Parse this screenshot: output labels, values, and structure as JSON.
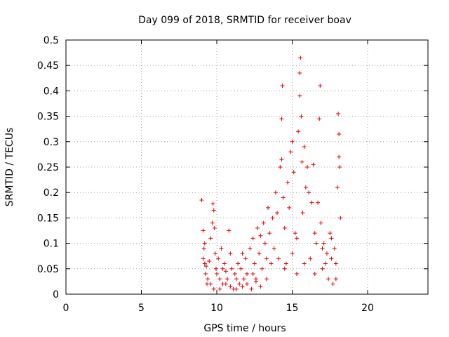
{
  "chart_data": {
    "type": "scatter",
    "title": "Day 099 of 2018, SRMTID for receiver boav",
    "xlabel": "GPS time / hours",
    "ylabel": "SRMTID / TECUs",
    "xlim": [
      0,
      24
    ],
    "ylim": [
      0,
      0.5
    ],
    "x_ticks": [
      0,
      5,
      10,
      15,
      20
    ],
    "x_tick_labels": [
      "0",
      "5",
      "10",
      "15",
      "20"
    ],
    "y_ticks": [
      0,
      0.05,
      0.1,
      0.15,
      0.2,
      0.25,
      0.3,
      0.35,
      0.4,
      0.45,
      0.5
    ],
    "y_tick_labels": [
      "0",
      "0.05",
      "0.1",
      "0.15",
      "0.2",
      "0.25",
      "0.3",
      "0.35",
      "0.4",
      "0.45",
      "0.5"
    ],
    "grid": true,
    "marker": "+",
    "color": "#e00000",
    "series": [
      {
        "name": "SRMTID",
        "points": [
          [
            9.0,
            0.185
          ],
          [
            9.1,
            0.125
          ],
          [
            9.15,
            0.09
          ],
          [
            9.2,
            0.06
          ],
          [
            9.25,
            0.04
          ],
          [
            9.3,
            0.055
          ],
          [
            9.35,
            0.02
          ],
          [
            9.1,
            0.07
          ],
          [
            9.2,
            0.1
          ],
          [
            9.4,
            0.03
          ],
          [
            9.5,
            0.065
          ],
          [
            9.6,
            0.11
          ],
          [
            9.7,
            0.14
          ],
          [
            9.75,
            0.178
          ],
          [
            9.8,
            0.165
          ],
          [
            9.85,
            0.13
          ],
          [
            9.9,
            0.08
          ],
          [
            9.95,
            0.05
          ],
          [
            9.6,
            0.02
          ],
          [
            9.8,
            0.01
          ],
          [
            10.0,
            0.04
          ],
          [
            10.1,
            0.07
          ],
          [
            10.2,
            0.03
          ],
          [
            10.3,
            0.09
          ],
          [
            10.4,
            0.05
          ],
          [
            10.5,
            0.06
          ],
          [
            10.6,
            0.02
          ],
          [
            10.7,
            0.03
          ],
          [
            10.8,
            0.125
          ],
          [
            10.9,
            0.08
          ],
          [
            11.0,
            0.05
          ],
          [
            11.1,
            0.01
          ],
          [
            11.2,
            0.04
          ],
          [
            11.3,
            0.03
          ],
          [
            11.4,
            0.06
          ],
          [
            11.5,
            0.02
          ],
          [
            11.6,
            0.05
          ],
          [
            11.7,
            0.08
          ],
          [
            11.8,
            0.03
          ],
          [
            11.9,
            0.07
          ],
          [
            10.2,
            0.01
          ],
          [
            10.4,
            0.02
          ],
          [
            10.6,
            0.045
          ],
          [
            10.9,
            0.015
          ],
          [
            11.3,
            0.01
          ],
          [
            11.7,
            0.015
          ],
          [
            12.0,
            0.02
          ],
          [
            12.3,
            0.01
          ],
          [
            12.6,
            0.025
          ],
          [
            12.9,
            0.015
          ],
          [
            12.0,
            0.04
          ],
          [
            12.2,
            0.09
          ],
          [
            12.4,
            0.11
          ],
          [
            12.5,
            0.06
          ],
          [
            12.6,
            0.03
          ],
          [
            12.7,
            0.13
          ],
          [
            12.8,
            0.08
          ],
          [
            12.9,
            0.115
          ],
          [
            13.0,
            0.05
          ],
          [
            13.1,
            0.14
          ],
          [
            13.2,
            0.1
          ],
          [
            13.3,
            0.07
          ],
          [
            13.4,
            0.17
          ],
          [
            13.5,
            0.12
          ],
          [
            13.6,
            0.06
          ],
          [
            13.7,
            0.15
          ],
          [
            13.8,
            0.09
          ],
          [
            13.9,
            0.2
          ],
          [
            14.0,
            0.16
          ],
          [
            14.1,
            0.07
          ],
          [
            14.2,
            0.25
          ],
          [
            14.3,
            0.265
          ],
          [
            14.3,
            0.345
          ],
          [
            14.35,
            0.41
          ],
          [
            14.4,
            0.19
          ],
          [
            14.5,
            0.13
          ],
          [
            14.6,
            0.06
          ],
          [
            14.7,
            0.22
          ],
          [
            14.8,
            0.17
          ],
          [
            14.9,
            0.28
          ],
          [
            15.0,
            0.3
          ],
          [
            15.1,
            0.24
          ],
          [
            15.2,
            0.12
          ],
          [
            15.3,
            0.04
          ],
          [
            15.4,
            0.32
          ],
          [
            15.5,
            0.39
          ],
          [
            15.5,
            0.435
          ],
          [
            15.55,
            0.465
          ],
          [
            15.6,
            0.35
          ],
          [
            15.65,
            0.26
          ],
          [
            15.7,
            0.16
          ],
          [
            15.8,
            0.29
          ],
          [
            15.9,
            0.21
          ],
          [
            16.0,
            0.25
          ],
          [
            16.1,
            0.2
          ],
          [
            16.2,
            0.07
          ],
          [
            16.3,
            0.18
          ],
          [
            16.4,
            0.255
          ],
          [
            16.5,
            0.12
          ],
          [
            16.6,
            0.1
          ],
          [
            16.7,
            0.18
          ],
          [
            16.8,
            0.345
          ],
          [
            16.85,
            0.41
          ],
          [
            16.9,
            0.14
          ],
          [
            17.0,
            0.05
          ],
          [
            17.1,
            0.1
          ],
          [
            17.2,
            0.06
          ],
          [
            17.3,
            0.08
          ],
          [
            17.4,
            0.03
          ],
          [
            17.5,
            0.12
          ],
          [
            17.6,
            0.07
          ],
          [
            17.7,
            0.02
          ],
          [
            17.8,
            0.09
          ],
          [
            17.9,
            0.06
          ],
          [
            18.0,
            0.21
          ],
          [
            18.05,
            0.355
          ],
          [
            18.1,
            0.315
          ],
          [
            18.1,
            0.27
          ],
          [
            18.15,
            0.25
          ],
          [
            18.2,
            0.15
          ],
          [
            14.5,
            0.05
          ],
          [
            15.0,
            0.08
          ],
          [
            15.3,
            0.11
          ],
          [
            15.8,
            0.06
          ],
          [
            16.5,
            0.04
          ],
          [
            17.0,
            0.09
          ],
          [
            17.6,
            0.11
          ],
          [
            17.9,
            0.03
          ],
          [
            13.3,
            0.03
          ],
          [
            12.4,
            0.04
          ]
        ]
      }
    ]
  }
}
